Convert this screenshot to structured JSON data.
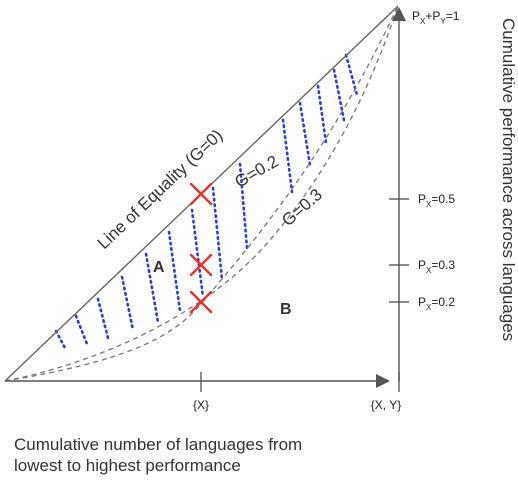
{
  "labels": {
    "line_of_equality": "Line of Equality (G=0)",
    "curve_g02": "G=0.2",
    "curve_g03": "G=0.3",
    "region_a": "A",
    "region_b": "B",
    "y_axis_title": "Cumulative performance across languages",
    "x_axis_title_line1": "Cumulative number of languages from",
    "x_axis_title_line2": "lowest to highest performance"
  },
  "ticks": {
    "x_mid": "{X}",
    "x_end": "{X, Y}",
    "y_top_p": "P",
    "y_top_sub1": "X",
    "y_top_plus": "+P",
    "y_top_sub2": "Y",
    "y_top_eq": "=1",
    "y_05_p": "P",
    "y_05_sub": "X",
    "y_05_val": "=0.5",
    "y_03_p": "P",
    "y_03_sub": "X",
    "y_03_val": "=0.3",
    "y_02_p": "P",
    "y_02_sub": "X",
    "y_02_val": "=0.2"
  },
  "colors": {
    "axis": "#555555",
    "equality_line": "#666666",
    "curves": "#777777",
    "dotted": "#2b3fd6",
    "marker": "#e8322c"
  }
}
